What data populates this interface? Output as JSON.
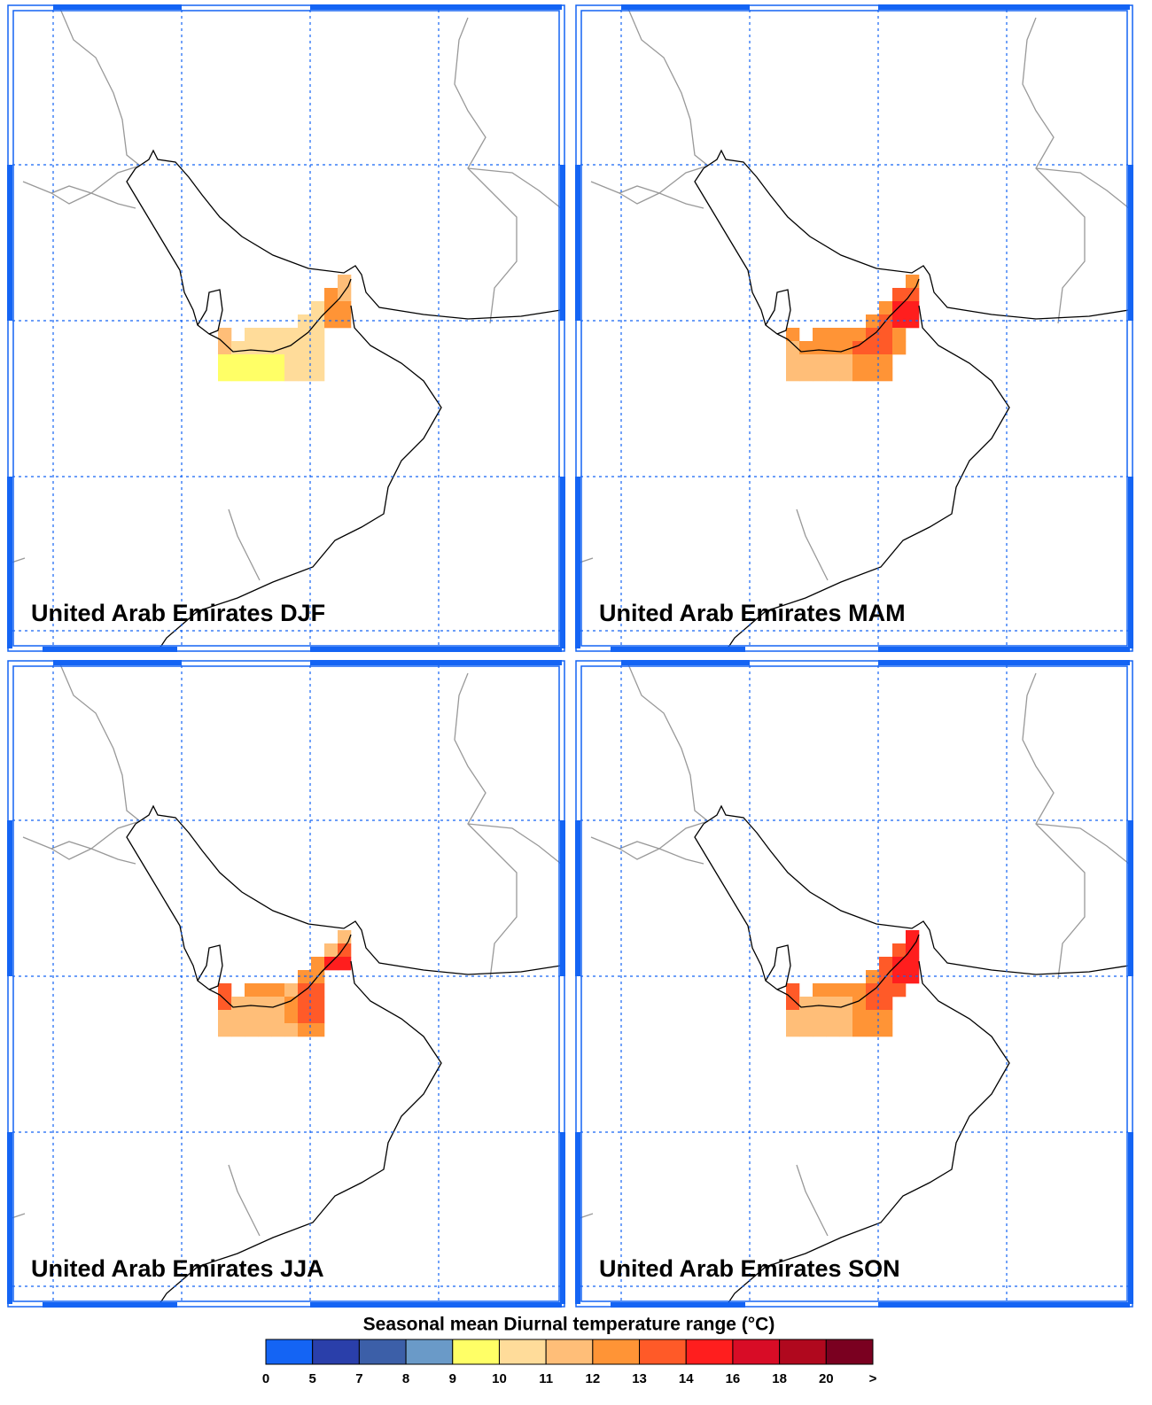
{
  "maps": {
    "panels": [
      {
        "title": "United Arab Emirates DJF",
        "cells": [
          [
            null,
            null,
            null,
            null,
            null,
            null,
            null,
            null,
            null,
            11.5
          ],
          [
            null,
            null,
            null,
            null,
            null,
            null,
            null,
            null,
            12.5,
            11.5
          ],
          [
            null,
            null,
            null,
            null,
            null,
            null,
            null,
            10.5,
            12.5,
            12.5
          ],
          [
            null,
            null,
            null,
            null,
            null,
            null,
            10.5,
            10.5,
            12.5,
            12.5
          ],
          [
            11.5,
            null,
            10.5,
            10.5,
            10.5,
            10.5,
            10.5,
            10.5,
            null,
            null
          ],
          [
            11.5,
            10.5,
            10.5,
            10.5,
            10.5,
            10.5,
            10.5,
            10.5,
            null,
            null
          ],
          [
            9.5,
            9.5,
            9.5,
            9.5,
            9.5,
            10.5,
            10.5,
            10.5,
            null,
            null
          ],
          [
            9.5,
            9.5,
            9.5,
            9.5,
            9.5,
            10.5,
            10.5,
            10.5,
            null,
            null
          ]
        ]
      },
      {
        "title": "United Arab Emirates MAM",
        "cells": [
          [
            null,
            null,
            null,
            null,
            null,
            null,
            null,
            null,
            null,
            12.5
          ],
          [
            null,
            null,
            null,
            null,
            null,
            null,
            null,
            null,
            13.5,
            13.5
          ],
          [
            null,
            null,
            null,
            null,
            null,
            null,
            null,
            12.5,
            15,
            15
          ],
          [
            null,
            null,
            null,
            null,
            null,
            null,
            12.5,
            13.5,
            15,
            15
          ],
          [
            12.5,
            null,
            12.5,
            12.5,
            12.5,
            12.5,
            13.5,
            13.5,
            12.5,
            null
          ],
          [
            11.5,
            12.5,
            12.5,
            12.5,
            12.5,
            13.5,
            13.5,
            13.5,
            12.5,
            null
          ],
          [
            11.5,
            11.5,
            11.5,
            11.5,
            11.5,
            12.5,
            12.5,
            12.5,
            null,
            null
          ],
          [
            11.5,
            11.5,
            11.5,
            11.5,
            11.5,
            12.5,
            12.5,
            12.5,
            null,
            null
          ]
        ]
      },
      {
        "title": "United Arab Emirates JJA",
        "cells": [
          [
            null,
            null,
            null,
            null,
            null,
            null,
            null,
            null,
            null,
            11.5
          ],
          [
            null,
            null,
            null,
            null,
            null,
            null,
            null,
            null,
            11.5,
            13.5
          ],
          [
            null,
            null,
            null,
            null,
            null,
            null,
            null,
            12.5,
            15,
            15
          ],
          [
            null,
            null,
            null,
            null,
            null,
            null,
            12.5,
            12.5,
            null,
            null
          ],
          [
            13.5,
            null,
            12.5,
            12.5,
            12.5,
            11.5,
            13.5,
            13.5,
            null,
            null
          ],
          [
            13.5,
            11.5,
            11.5,
            11.5,
            11.5,
            12.5,
            13.5,
            13.5,
            null,
            null
          ],
          [
            11.5,
            11.5,
            11.5,
            11.5,
            11.5,
            12.5,
            13.5,
            13.5,
            null,
            null
          ],
          [
            11.5,
            11.5,
            11.5,
            11.5,
            11.5,
            11.5,
            12.5,
            12.5,
            null,
            null
          ]
        ]
      },
      {
        "title": "United Arab Emirates SON",
        "cells": [
          [
            null,
            null,
            null,
            null,
            null,
            null,
            null,
            null,
            null,
            15
          ],
          [
            null,
            null,
            null,
            null,
            null,
            null,
            null,
            null,
            13.5,
            15
          ],
          [
            null,
            null,
            null,
            null,
            null,
            null,
            null,
            13.5,
            15,
            15
          ],
          [
            null,
            null,
            null,
            null,
            null,
            null,
            12.5,
            13.5,
            15,
            15
          ],
          [
            13.5,
            null,
            12.5,
            12.5,
            12.5,
            12.5,
            13.5,
            13.5,
            13.5,
            null
          ],
          [
            13.5,
            11.5,
            11.5,
            11.5,
            11.5,
            12.5,
            13.5,
            13.5,
            null,
            null
          ],
          [
            11.5,
            11.5,
            11.5,
            11.5,
            11.5,
            12.5,
            12.5,
            12.5,
            null,
            null
          ],
          [
            11.5,
            11.5,
            11.5,
            11.5,
            11.5,
            12.5,
            12.5,
            12.5,
            null,
            null
          ]
        ]
      }
    ],
    "colorbar": {
      "title": "Seasonal mean Diurnal temperature range (°C)",
      "ticks": [
        0,
        5,
        7,
        8,
        9,
        10,
        11,
        12,
        13,
        14,
        16,
        18,
        20
      ],
      "overflow_label": ">",
      "colors": [
        "#1464f4",
        "#2a3faa",
        "#3c5fa8",
        "#6a9ac8",
        "#ffff66",
        "#ffdc9a",
        "#ffbe78",
        "#ff9436",
        "#ff5a28",
        "#ff1e1e",
        "#d80c26",
        "#b0081e",
        "#7a0020"
      ]
    }
  }
}
